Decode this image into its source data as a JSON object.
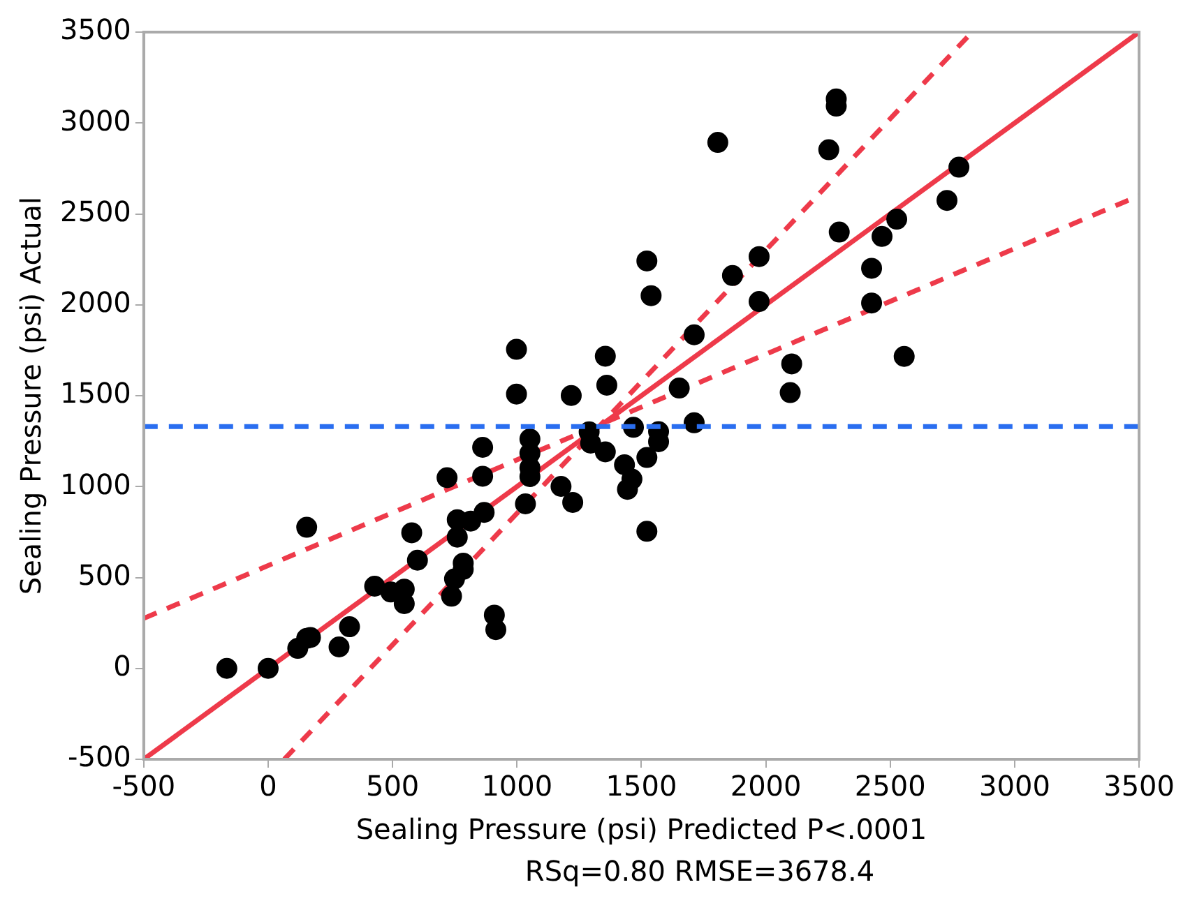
{
  "chart_data": {
    "type": "scatter",
    "xlabel": "Sealing Pressure (psi) Predicted P<.0001",
    "ylabel": "Sealing Pressure (psi) Actual",
    "annotations": [
      "RSq=0.80 RMSE=3678.4"
    ],
    "xlim": [
      -500,
      3500
    ],
    "ylim": [
      -500,
      3500
    ],
    "xticks": [
      -500,
      0,
      500,
      1000,
      1500,
      2000,
      2500,
      3000,
      3500
    ],
    "yticks": [
      -500,
      0,
      500,
      1000,
      1500,
      2000,
      2500,
      3000,
      3500
    ],
    "grid": false,
    "legend": false,
    "series": [
      {
        "type": "line",
        "color": "#ee3a4a",
        "line_style": "solid",
        "marker": "none",
        "x": [
          -500,
          3500
        ],
        "values": [
          -500,
          3500
        ]
      },
      {
        "type": "line",
        "color": "#ee3a4a",
        "line_style": "dashed",
        "marker": "none",
        "x": [
          65,
          2829
        ],
        "values": [
          -500,
          3500
        ]
      },
      {
        "type": "line",
        "color": "#ee3a4a",
        "line_style": "dashed",
        "marker": "none",
        "x": [
          -500,
          3500
        ],
        "values": [
          275,
          2600
        ]
      },
      {
        "type": "scatter",
        "color": "#000000",
        "marker": "circle",
        "x": [
          -166,
          0,
          119,
          155,
          170,
          155,
          285,
          327,
          428,
          493,
          547,
          547,
          577,
          600,
          719,
          737,
          749,
          760,
          760,
          784,
          784,
          814,
          862,
          868,
          862,
          909,
          915,
          998,
          998,
          1034,
          1052,
          1052,
          1052,
          1052,
          1177,
          1218,
          1224,
          1290,
          1296,
          1355,
          1361,
          1355,
          1432,
          1444,
          1462,
          1468,
          1522,
          1539,
          1522,
          1522,
          1569,
          1569,
          1712,
          1712,
          1652,
          1807,
          1866,
          1973,
          1973,
          2098,
          2104,
          2253,
          2283,
          2283,
          2295,
          2425,
          2425,
          2467,
          2526,
          2556,
          2728,
          2776
        ],
        "values": [
          0,
          0,
          110,
          165,
          170,
          776,
          118,
          229,
          452,
          420,
          436,
          356,
          746,
          595,
          1049,
          397,
          492,
          818,
          722,
          579,
          545,
          810,
          1216,
          858,
          1057,
          293,
          213,
          1755,
          1509,
          905,
          1262,
          1183,
          1103,
          1055,
          1001,
          1501,
          913,
          1301,
          1239,
          1717,
          1558,
          1191,
          1120,
          985,
          1041,
          1326,
          2241,
          2050,
          1160,
          754,
          1302,
          1247,
          1835,
          1351,
          1542,
          2893,
          2161,
          2265,
          2018,
          1517,
          1675,
          2853,
          3132,
          3093,
          2400,
          2201,
          2010,
          2376,
          2471,
          1716,
          2574,
          2757
        ]
      }
    ],
    "ref_lines": [
      {
        "axis": "y",
        "value": 1330,
        "color": "#2a6ef0",
        "line_style": "dashed"
      }
    ]
  }
}
